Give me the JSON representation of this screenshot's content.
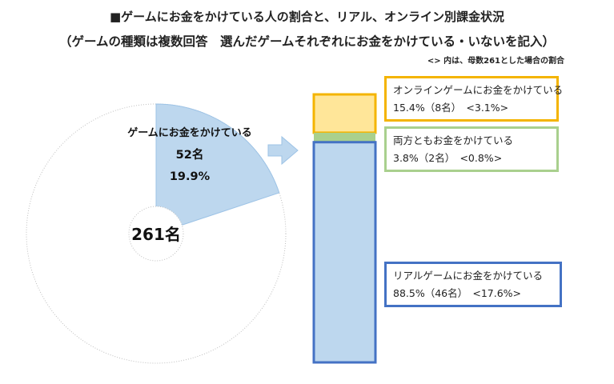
{
  "title_line1": "■ゲームにお金をかけている人の割合と、リアル、オンライン別課金状況",
  "title_line2": "（ゲームの種類は複数回答　選んだゲームそれぞれにお金をかけている・いないを記入）",
  "note": "<> 内は、母数261とした場合の割合",
  "chart_data": [
    {
      "type": "pie",
      "total_label": "261名",
      "total": 261,
      "slices": [
        {
          "label": "ゲームにお金をかけている",
          "count_label": "52名",
          "percent_label": "19.9%",
          "value": 19.9,
          "color": "#bdd7ee"
        },
        {
          "label": "",
          "value": 80.1,
          "color": "#ffffff"
        }
      ]
    },
    {
      "type": "bar",
      "stacked": true,
      "segments": [
        {
          "name": "オンラインゲームにお金をかけている",
          "value_label": "15.4%（8名）　<3.1%>",
          "value": 15.4,
          "fill": "#ffe699",
          "border": "#f4b400"
        },
        {
          "name": "両方ともお金をかけている",
          "value_label": "3.8%（2名）　<0.8%>",
          "value": 3.8,
          "fill": "#a9d08e",
          "border": "#a9d08e"
        },
        {
          "name": "リアルゲームにお金をかけている",
          "value_label": "88.5%（46名）　<17.6%>",
          "value": 88.5,
          "fill": "#bdd7ee",
          "border": "#4472c4"
        }
      ]
    }
  ],
  "colors": {
    "arrow": "#bdd7ee",
    "arrow_stroke": "#9dc3e6",
    "pie_edge": "#bfbfbf"
  }
}
